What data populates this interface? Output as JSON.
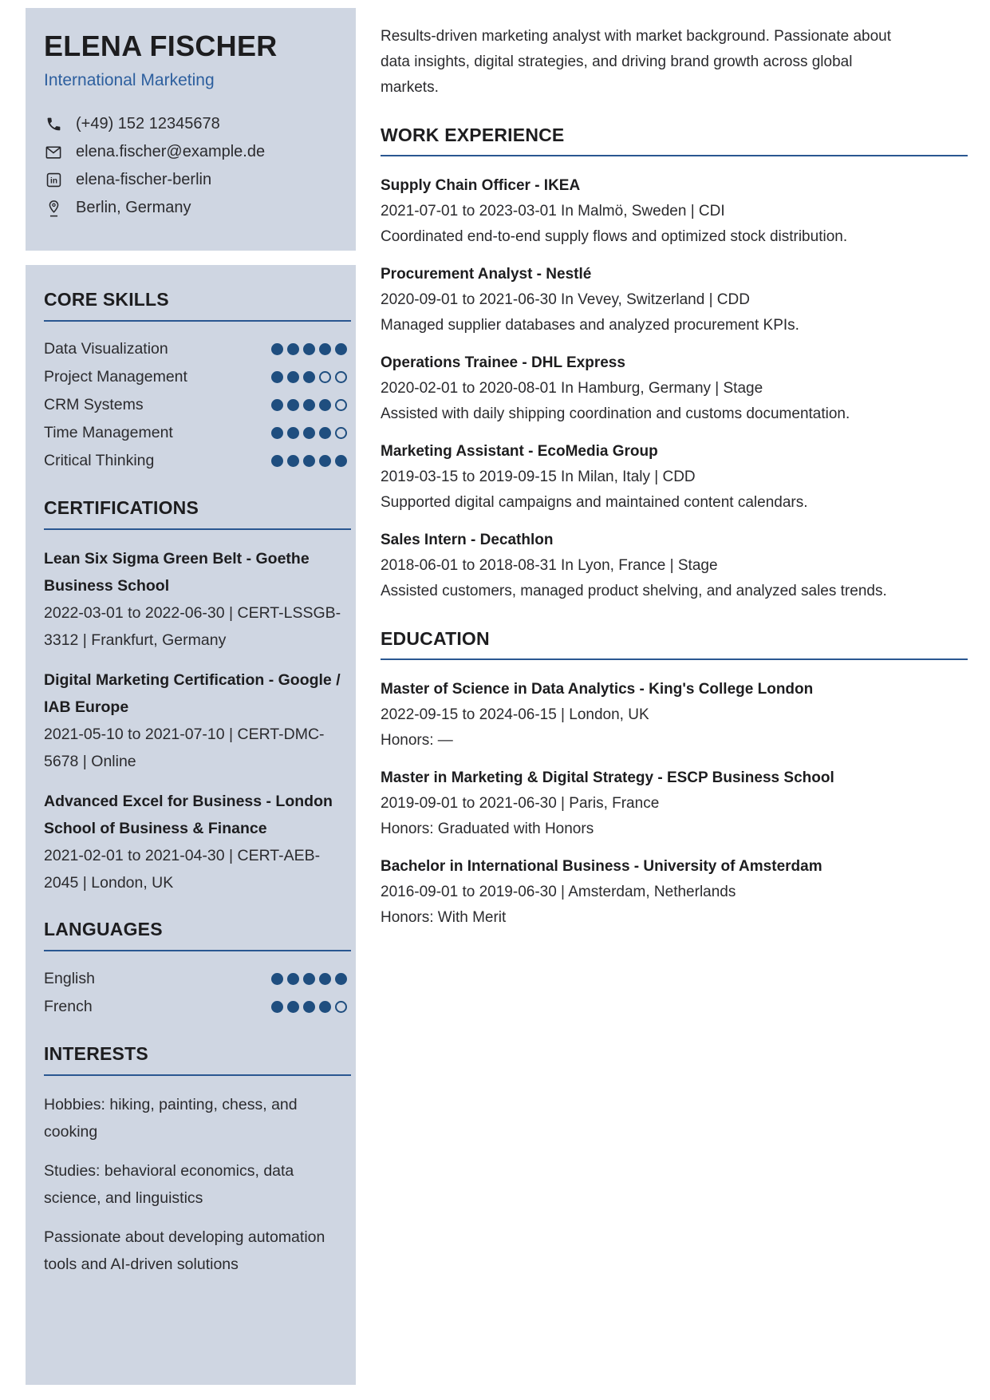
{
  "theme": {
    "panel_bg": "#cfd6e2",
    "accent_blue": "#2d5f9e",
    "rule_blue": "#2a5791",
    "dot_blue": "#1f4e7f",
    "heading_text": "#1d1d1f",
    "body_text": "#2b2b2e"
  },
  "header": {
    "name": "ELENA FISCHER",
    "title": "International Marketing",
    "contacts": [
      {
        "icon": "phone-icon",
        "text": "(+49) 152 12345678"
      },
      {
        "icon": "email-icon",
        "text": "elena.fischer@example.de"
      },
      {
        "icon": "linkedin-icon",
        "text": "elena-fischer-berlin"
      },
      {
        "icon": "location-icon",
        "text": "Berlin, Germany"
      }
    ]
  },
  "core_skills": {
    "title": "CORE SKILLS",
    "scale": 5,
    "items": [
      {
        "label": "Data Visualization",
        "rating": 5
      },
      {
        "label": "Project Management",
        "rating": 3
      },
      {
        "label": "CRM Systems",
        "rating": 4
      },
      {
        "label": "Time Management",
        "rating": 4
      },
      {
        "label": "Critical Thinking",
        "rating": 5
      }
    ]
  },
  "certifications": {
    "title": "CERTIFICATIONS",
    "items": [
      {
        "name": "Lean Six Sigma Green Belt - Goethe Business School",
        "details": "2022-03-01 to 2022-06-30 | CERT-LSSGB-3312 | Frankfurt, Germany"
      },
      {
        "name": "Digital Marketing Certification - Google / IAB Europe",
        "details": "2021-05-10 to 2021-07-10 | CERT-DMC-5678 | Online"
      },
      {
        "name": "Advanced Excel for Business - London School of Business & Finance",
        "details": "2021-02-01 to 2021-04-30 | CERT-AEB-2045 | London, UK"
      }
    ]
  },
  "languages": {
    "title": "LANGUAGES",
    "scale": 5,
    "items": [
      {
        "label": "English",
        "rating": 5
      },
      {
        "label": "French",
        "rating": 4
      }
    ]
  },
  "interests": {
    "title": "INTERESTS",
    "items": [
      "Hobbies: hiking, painting, chess, and cooking",
      "Studies: behavioral economics, data science, and linguistics",
      "Passionate about developing automation tools and AI-driven solutions"
    ]
  },
  "main": {
    "summary": "Results-driven marketing analyst with market background. Passionate about data insights, digital strategies, and driving brand growth across global markets.",
    "work": {
      "title": "WORK EXPERIENCE",
      "entries": [
        {
          "role": "Supply Chain Officer - IKEA",
          "meta": "2021-07-01 to 2023-03-01 In Malmö, Sweden | CDI",
          "description": "Coordinated end-to-end supply flows and optimized stock distribution."
        },
        {
          "role": "Procurement Analyst - Nestlé",
          "meta": "2020-09-01 to 2021-06-30 In Vevey, Switzerland | CDD",
          "description": "Managed supplier databases and analyzed procurement KPIs."
        },
        {
          "role": "Operations Trainee - DHL Express",
          "meta": "2020-02-01 to 2020-08-01 In Hamburg, Germany | Stage",
          "description": "Assisted with daily shipping coordination and customs documentation."
        },
        {
          "role": "Marketing Assistant - EcoMedia Group",
          "meta": "2019-03-15 to 2019-09-15 In Milan, Italy | CDD",
          "description": "Supported digital campaigns and maintained content calendars."
        },
        {
          "role": "Sales Intern - Decathlon",
          "meta": "2018-06-01 to 2018-08-31 In Lyon, France | Stage",
          "description": "Assisted customers, managed product shelving, and analyzed sales trends."
        }
      ]
    },
    "education": {
      "title": "EDUCATION",
      "entries": [
        {
          "degree": "Master of Science in Data Analytics - King's College London",
          "meta": "2022-09-15 to 2024-06-15 | London, UK",
          "honors": "Honors: —"
        },
        {
          "degree": "Master in Marketing & Digital Strategy - ESCP Business School",
          "meta": "2019-09-01 to 2021-06-30 | Paris, France",
          "honors": "Honors: Graduated with Honors"
        },
        {
          "degree": "Bachelor in International Business - University of Amsterdam",
          "meta": "2016-09-01 to 2019-06-30 | Amsterdam, Netherlands",
          "honors": "Honors: With Merit"
        }
      ]
    }
  }
}
